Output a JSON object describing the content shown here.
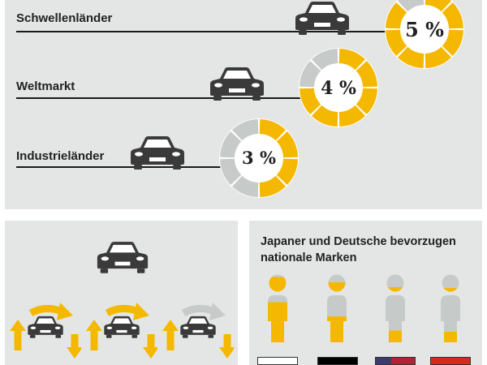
{
  "segments": [
    {
      "label": "Schwellenländer",
      "percent": "5 %",
      "share": 0.82
    },
    {
      "label": "Weltmarkt",
      "percent": "4 %",
      "share": 0.78
    },
    {
      "label": "Industrieländer",
      "percent": "3 %",
      "share": 0.55
    }
  ],
  "preference": {
    "title": "Japaner und Deutsche bevorzugen nationale Marken",
    "people": [
      {
        "name": "person-1",
        "level": 0.85
      },
      {
        "name": "person-2",
        "level": 0.55
      },
      {
        "name": "person-3",
        "level": 0.25
      },
      {
        "name": "person-4",
        "level": 0.22
      }
    ]
  },
  "colors": {
    "accent": "#f5b800",
    "ring_gray": "#c6cbca",
    "panel": "#e3e6e5",
    "dark": "#3a3a3a"
  },
  "icons": [
    "car-icon",
    "cycle-arrows-icon",
    "person-icon",
    "flag-icon"
  ]
}
